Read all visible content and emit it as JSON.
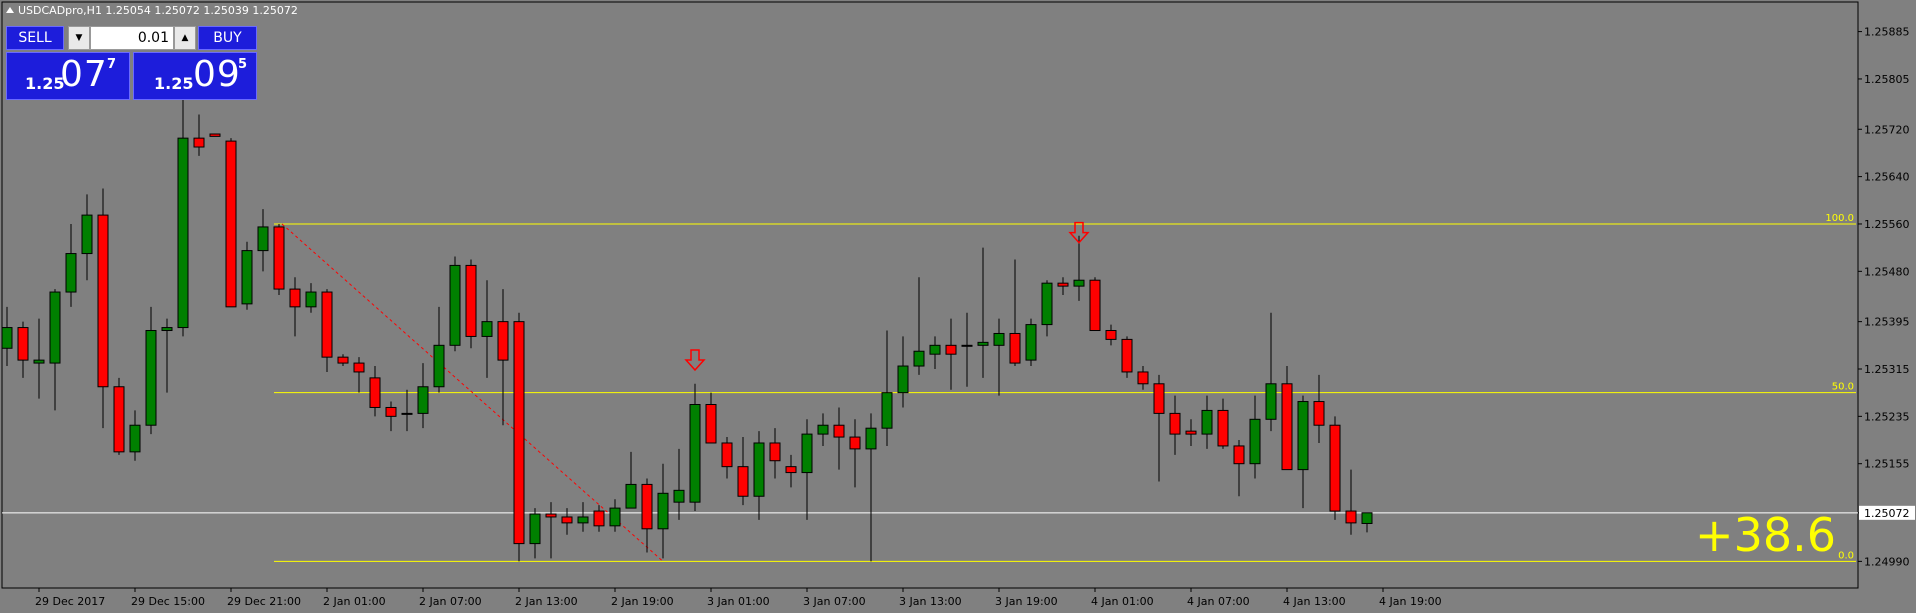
{
  "window": {
    "title": "USDCADpro,H1  1.25054 1.25072 1.25039 1.25072"
  },
  "trade_panel": {
    "sell_label": "SELL",
    "buy_label": "BUY",
    "lot_value": "0.01",
    "sell_price": {
      "prefix": "1.25",
      "big": "07",
      "sup": "7"
    },
    "buy_price": {
      "prefix": "1.25",
      "big": "09",
      "sup": "5"
    }
  },
  "profit_label": "+38.6",
  "colors": {
    "background": "#808080",
    "bull": "#008000",
    "bear": "#ff0000",
    "fib": "#ffff00",
    "current_price_line": "#ffffff",
    "panel": "#1d1ddb"
  },
  "chart_data": {
    "type": "candlestick",
    "symbol": "USDCADpro",
    "timeframe": "H1",
    "y_range": [
      1.24945,
      1.25935
    ],
    "y_ticks": [
      1.25885,
      1.25805,
      1.2572,
      1.2564,
      1.2556,
      1.2548,
      1.25395,
      1.25315,
      1.25235,
      1.25155,
      1.25072,
      1.2499
    ],
    "y_tick_labels": [
      "1.25885",
      "1.25805",
      "1.25720",
      "1.25640",
      "1.25560",
      "1.25480",
      "1.25395",
      "1.25315",
      "1.25235",
      "1.25155",
      "1.25072",
      "1.24990"
    ],
    "x_labels": [
      {
        "bar": 2,
        "text": "29 Dec 2017"
      },
      {
        "bar": 8,
        "text": "29 Dec 15:00"
      },
      {
        "bar": 14,
        "text": "29 Dec 21:00"
      },
      {
        "bar": 20,
        "text": "2 Jan 01:00"
      },
      {
        "bar": 26,
        "text": "2 Jan 07:00"
      },
      {
        "bar": 32,
        "text": "2 Jan 13:00"
      },
      {
        "bar": 38,
        "text": "2 Jan 19:00"
      },
      {
        "bar": 44,
        "text": "3 Jan 01:00"
      },
      {
        "bar": 50,
        "text": "3 Jan 07:00"
      },
      {
        "bar": 56,
        "text": "3 Jan 13:00"
      },
      {
        "bar": 62,
        "text": "3 Jan 19:00"
      },
      {
        "bar": 68,
        "text": "4 Jan 01:00"
      },
      {
        "bar": 74,
        "text": "4 Jan 07:00"
      },
      {
        "bar": 80,
        "text": "4 Jan 13:00"
      },
      {
        "bar": 86,
        "text": "4 Jan 19:00"
      }
    ],
    "candles": [
      {
        "o": 1.2535,
        "h": 1.2542,
        "l": 1.2532,
        "c": 1.25385
      },
      {
        "o": 1.25385,
        "h": 1.25395,
        "l": 1.253,
        "c": 1.2533
      },
      {
        "o": 1.25325,
        "h": 1.254,
        "l": 1.25265,
        "c": 1.2533
      },
      {
        "o": 1.25325,
        "h": 1.2545,
        "l": 1.25245,
        "c": 1.25445
      },
      {
        "o": 1.25445,
        "h": 1.2556,
        "l": 1.2542,
        "c": 1.2551
      },
      {
        "o": 1.2551,
        "h": 1.2561,
        "l": 1.25465,
        "c": 1.25575
      },
      {
        "o": 1.25575,
        "h": 1.2562,
        "l": 1.25215,
        "c": 1.25285
      },
      {
        "o": 1.25285,
        "h": 1.253,
        "l": 1.2517,
        "c": 1.25175
      },
      {
        "o": 1.25175,
        "h": 1.25245,
        "l": 1.2516,
        "c": 1.2522
      },
      {
        "o": 1.2522,
        "h": 1.2542,
        "l": 1.25205,
        "c": 1.2538
      },
      {
        "o": 1.2538,
        "h": 1.254,
        "l": 1.25275,
        "c": 1.25385
      },
      {
        "o": 1.25385,
        "h": 1.2578,
        "l": 1.2537,
        "c": 1.25705
      },
      {
        "o": 1.25705,
        "h": 1.25745,
        "l": 1.25675,
        "c": 1.2569
      },
      {
        "o": 1.25712,
        "h": 1.25712,
        "l": 1.25708,
        "c": 1.25708
      },
      {
        "o": 1.257,
        "h": 1.25705,
        "l": 1.2542,
        "c": 1.2542
      },
      {
        "o": 1.25425,
        "h": 1.2553,
        "l": 1.25415,
        "c": 1.25515
      },
      {
        "o": 1.25515,
        "h": 1.25585,
        "l": 1.2548,
        "c": 1.25555
      },
      {
        "o": 1.25555,
        "h": 1.2556,
        "l": 1.2544,
        "c": 1.2545
      },
      {
        "o": 1.2545,
        "h": 1.2547,
        "l": 1.2537,
        "c": 1.2542
      },
      {
        "o": 1.2542,
        "h": 1.2546,
        "l": 1.2541,
        "c": 1.25445
      },
      {
        "o": 1.25445,
        "h": 1.2545,
        "l": 1.2531,
        "c": 1.25335
      },
      {
        "o": 1.25335,
        "h": 1.2534,
        "l": 1.2532,
        "c": 1.25325
      },
      {
        "o": 1.25325,
        "h": 1.25335,
        "l": 1.25275,
        "c": 1.2531
      },
      {
        "o": 1.253,
        "h": 1.2532,
        "l": 1.25235,
        "c": 1.2525
      },
      {
        "o": 1.2525,
        "h": 1.2526,
        "l": 1.2521,
        "c": 1.25235
      },
      {
        "o": 1.2524,
        "h": 1.2528,
        "l": 1.2521,
        "c": 1.2524
      },
      {
        "o": 1.2524,
        "h": 1.25325,
        "l": 1.25215,
        "c": 1.25285
      },
      {
        "o": 1.25285,
        "h": 1.2542,
        "l": 1.25275,
        "c": 1.25355
      },
      {
        "o": 1.25355,
        "h": 1.25505,
        "l": 1.25345,
        "c": 1.2549
      },
      {
        "o": 1.2549,
        "h": 1.255,
        "l": 1.2535,
        "c": 1.2537
      },
      {
        "o": 1.2537,
        "h": 1.25465,
        "l": 1.253,
        "c": 1.25395
      },
      {
        "o": 1.25395,
        "h": 1.2545,
        "l": 1.2522,
        "c": 1.2533
      },
      {
        "o": 1.25395,
        "h": 1.2541,
        "l": 1.2499,
        "c": 1.2502
      },
      {
        "o": 1.2502,
        "h": 1.2508,
        "l": 1.24995,
        "c": 1.2507
      },
      {
        "o": 1.2507,
        "h": 1.2509,
        "l": 1.24995,
        "c": 1.25065
      },
      {
        "o": 1.25065,
        "h": 1.2508,
        "l": 1.25035,
        "c": 1.25055
      },
      {
        "o": 1.25055,
        "h": 1.2509,
        "l": 1.2504,
        "c": 1.25065
      },
      {
        "o": 1.25075,
        "h": 1.25085,
        "l": 1.2504,
        "c": 1.2505
      },
      {
        "o": 1.2505,
        "h": 1.25095,
        "l": 1.2504,
        "c": 1.2508
      },
      {
        "o": 1.2508,
        "h": 1.25175,
        "l": 1.2508,
        "c": 1.2512
      },
      {
        "o": 1.2512,
        "h": 1.2513,
        "l": 1.25005,
        "c": 1.25045
      },
      {
        "o": 1.25045,
        "h": 1.25155,
        "l": 1.24995,
        "c": 1.25105
      },
      {
        "o": 1.2509,
        "h": 1.2518,
        "l": 1.2506,
        "c": 1.2511
      },
      {
        "o": 1.2509,
        "h": 1.2529,
        "l": 1.25075,
        "c": 1.25255
      },
      {
        "o": 1.25255,
        "h": 1.25275,
        "l": 1.2519,
        "c": 1.2519
      },
      {
        "o": 1.2519,
        "h": 1.252,
        "l": 1.2513,
        "c": 1.2515
      },
      {
        "o": 1.2515,
        "h": 1.252,
        "l": 1.25085,
        "c": 1.251
      },
      {
        "o": 1.251,
        "h": 1.2521,
        "l": 1.2506,
        "c": 1.2519
      },
      {
        "o": 1.2519,
        "h": 1.25215,
        "l": 1.2513,
        "c": 1.2516
      },
      {
        "o": 1.2515,
        "h": 1.2517,
        "l": 1.25115,
        "c": 1.2514
      },
      {
        "o": 1.2514,
        "h": 1.2523,
        "l": 1.2506,
        "c": 1.25205
      },
      {
        "o": 1.25205,
        "h": 1.2524,
        "l": 1.25185,
        "c": 1.2522
      },
      {
        "o": 1.2522,
        "h": 1.2525,
        "l": 1.25145,
        "c": 1.252
      },
      {
        "o": 1.252,
        "h": 1.2523,
        "l": 1.25115,
        "c": 1.2518
      },
      {
        "o": 1.2518,
        "h": 1.2524,
        "l": 1.2499,
        "c": 1.25215
      },
      {
        "o": 1.25215,
        "h": 1.2538,
        "l": 1.25185,
        "c": 1.25275
      },
      {
        "o": 1.25275,
        "h": 1.2537,
        "l": 1.2525,
        "c": 1.2532
      },
      {
        "o": 1.2532,
        "h": 1.2547,
        "l": 1.25305,
        "c": 1.25345
      },
      {
        "o": 1.2534,
        "h": 1.2537,
        "l": 1.25315,
        "c": 1.25355
      },
      {
        "o": 1.25355,
        "h": 1.254,
        "l": 1.2528,
        "c": 1.2534
      },
      {
        "o": 1.25355,
        "h": 1.2541,
        "l": 1.25285,
        "c": 1.25355
      },
      {
        "o": 1.25355,
        "h": 1.2552,
        "l": 1.253,
        "c": 1.2536
      },
      {
        "o": 1.25355,
        "h": 1.254,
        "l": 1.2527,
        "c": 1.25375
      },
      {
        "o": 1.25375,
        "h": 1.255,
        "l": 1.2532,
        "c": 1.25325
      },
      {
        "o": 1.2533,
        "h": 1.254,
        "l": 1.2532,
        "c": 1.2539
      },
      {
        "o": 1.2539,
        "h": 1.25465,
        "l": 1.2537,
        "c": 1.2546
      },
      {
        "o": 1.2546,
        "h": 1.2547,
        "l": 1.2544,
        "c": 1.25455
      },
      {
        "o": 1.25455,
        "h": 1.2554,
        "l": 1.2543,
        "c": 1.25465
      },
      {
        "o": 1.25465,
        "h": 1.2547,
        "l": 1.2538,
        "c": 1.2538
      },
      {
        "o": 1.2538,
        "h": 1.2539,
        "l": 1.25355,
        "c": 1.25365
      },
      {
        "o": 1.25365,
        "h": 1.2537,
        "l": 1.253,
        "c": 1.2531
      },
      {
        "o": 1.2531,
        "h": 1.2532,
        "l": 1.2528,
        "c": 1.2529
      },
      {
        "o": 1.2529,
        "h": 1.25305,
        "l": 1.25125,
        "c": 1.2524
      },
      {
        "o": 1.2524,
        "h": 1.2527,
        "l": 1.2517,
        "c": 1.25205
      },
      {
        "o": 1.2521,
        "h": 1.2523,
        "l": 1.25185,
        "c": 1.25205
      },
      {
        "o": 1.25205,
        "h": 1.2527,
        "l": 1.2518,
        "c": 1.25245
      },
      {
        "o": 1.25245,
        "h": 1.25265,
        "l": 1.2518,
        "c": 1.25185
      },
      {
        "o": 1.25185,
        "h": 1.25195,
        "l": 1.251,
        "c": 1.25155
      },
      {
        "o": 1.25155,
        "h": 1.2527,
        "l": 1.2513,
        "c": 1.2523
      },
      {
        "o": 1.2523,
        "h": 1.2541,
        "l": 1.2521,
        "c": 1.2529
      },
      {
        "o": 1.2529,
        "h": 1.2532,
        "l": 1.25145,
        "c": 1.25145
      },
      {
        "o": 1.25145,
        "h": 1.2527,
        "l": 1.2508,
        "c": 1.2526
      },
      {
        "o": 1.2526,
        "h": 1.25305,
        "l": 1.2519,
        "c": 1.2522
      },
      {
        "o": 1.2522,
        "h": 1.25235,
        "l": 1.2506,
        "c": 1.25075
      },
      {
        "o": 1.25075,
        "h": 1.25145,
        "l": 1.25035,
        "c": 1.25055
      },
      {
        "o": 1.25054,
        "h": 1.25072,
        "l": 1.25039,
        "c": 1.25072
      }
    ],
    "current_price": 1.25072,
    "current_price_label": "1.25072",
    "fibonacci": {
      "start_bar": 17,
      "levels": [
        {
          "label": "100.0",
          "price": 1.2556
        },
        {
          "label": "50.0",
          "price": 1.25275
        },
        {
          "label": "0.0",
          "price": 1.2499
        }
      ]
    },
    "trendline": {
      "from_bar": 17,
      "from_price": 1.2556,
      "to_bar": 41,
      "to_price": 1.2499
    },
    "arrows": [
      {
        "bar": 43,
        "price": 1.2531,
        "direction": "down"
      },
      {
        "bar": 67,
        "price": 1.25525,
        "direction": "down"
      }
    ]
  }
}
